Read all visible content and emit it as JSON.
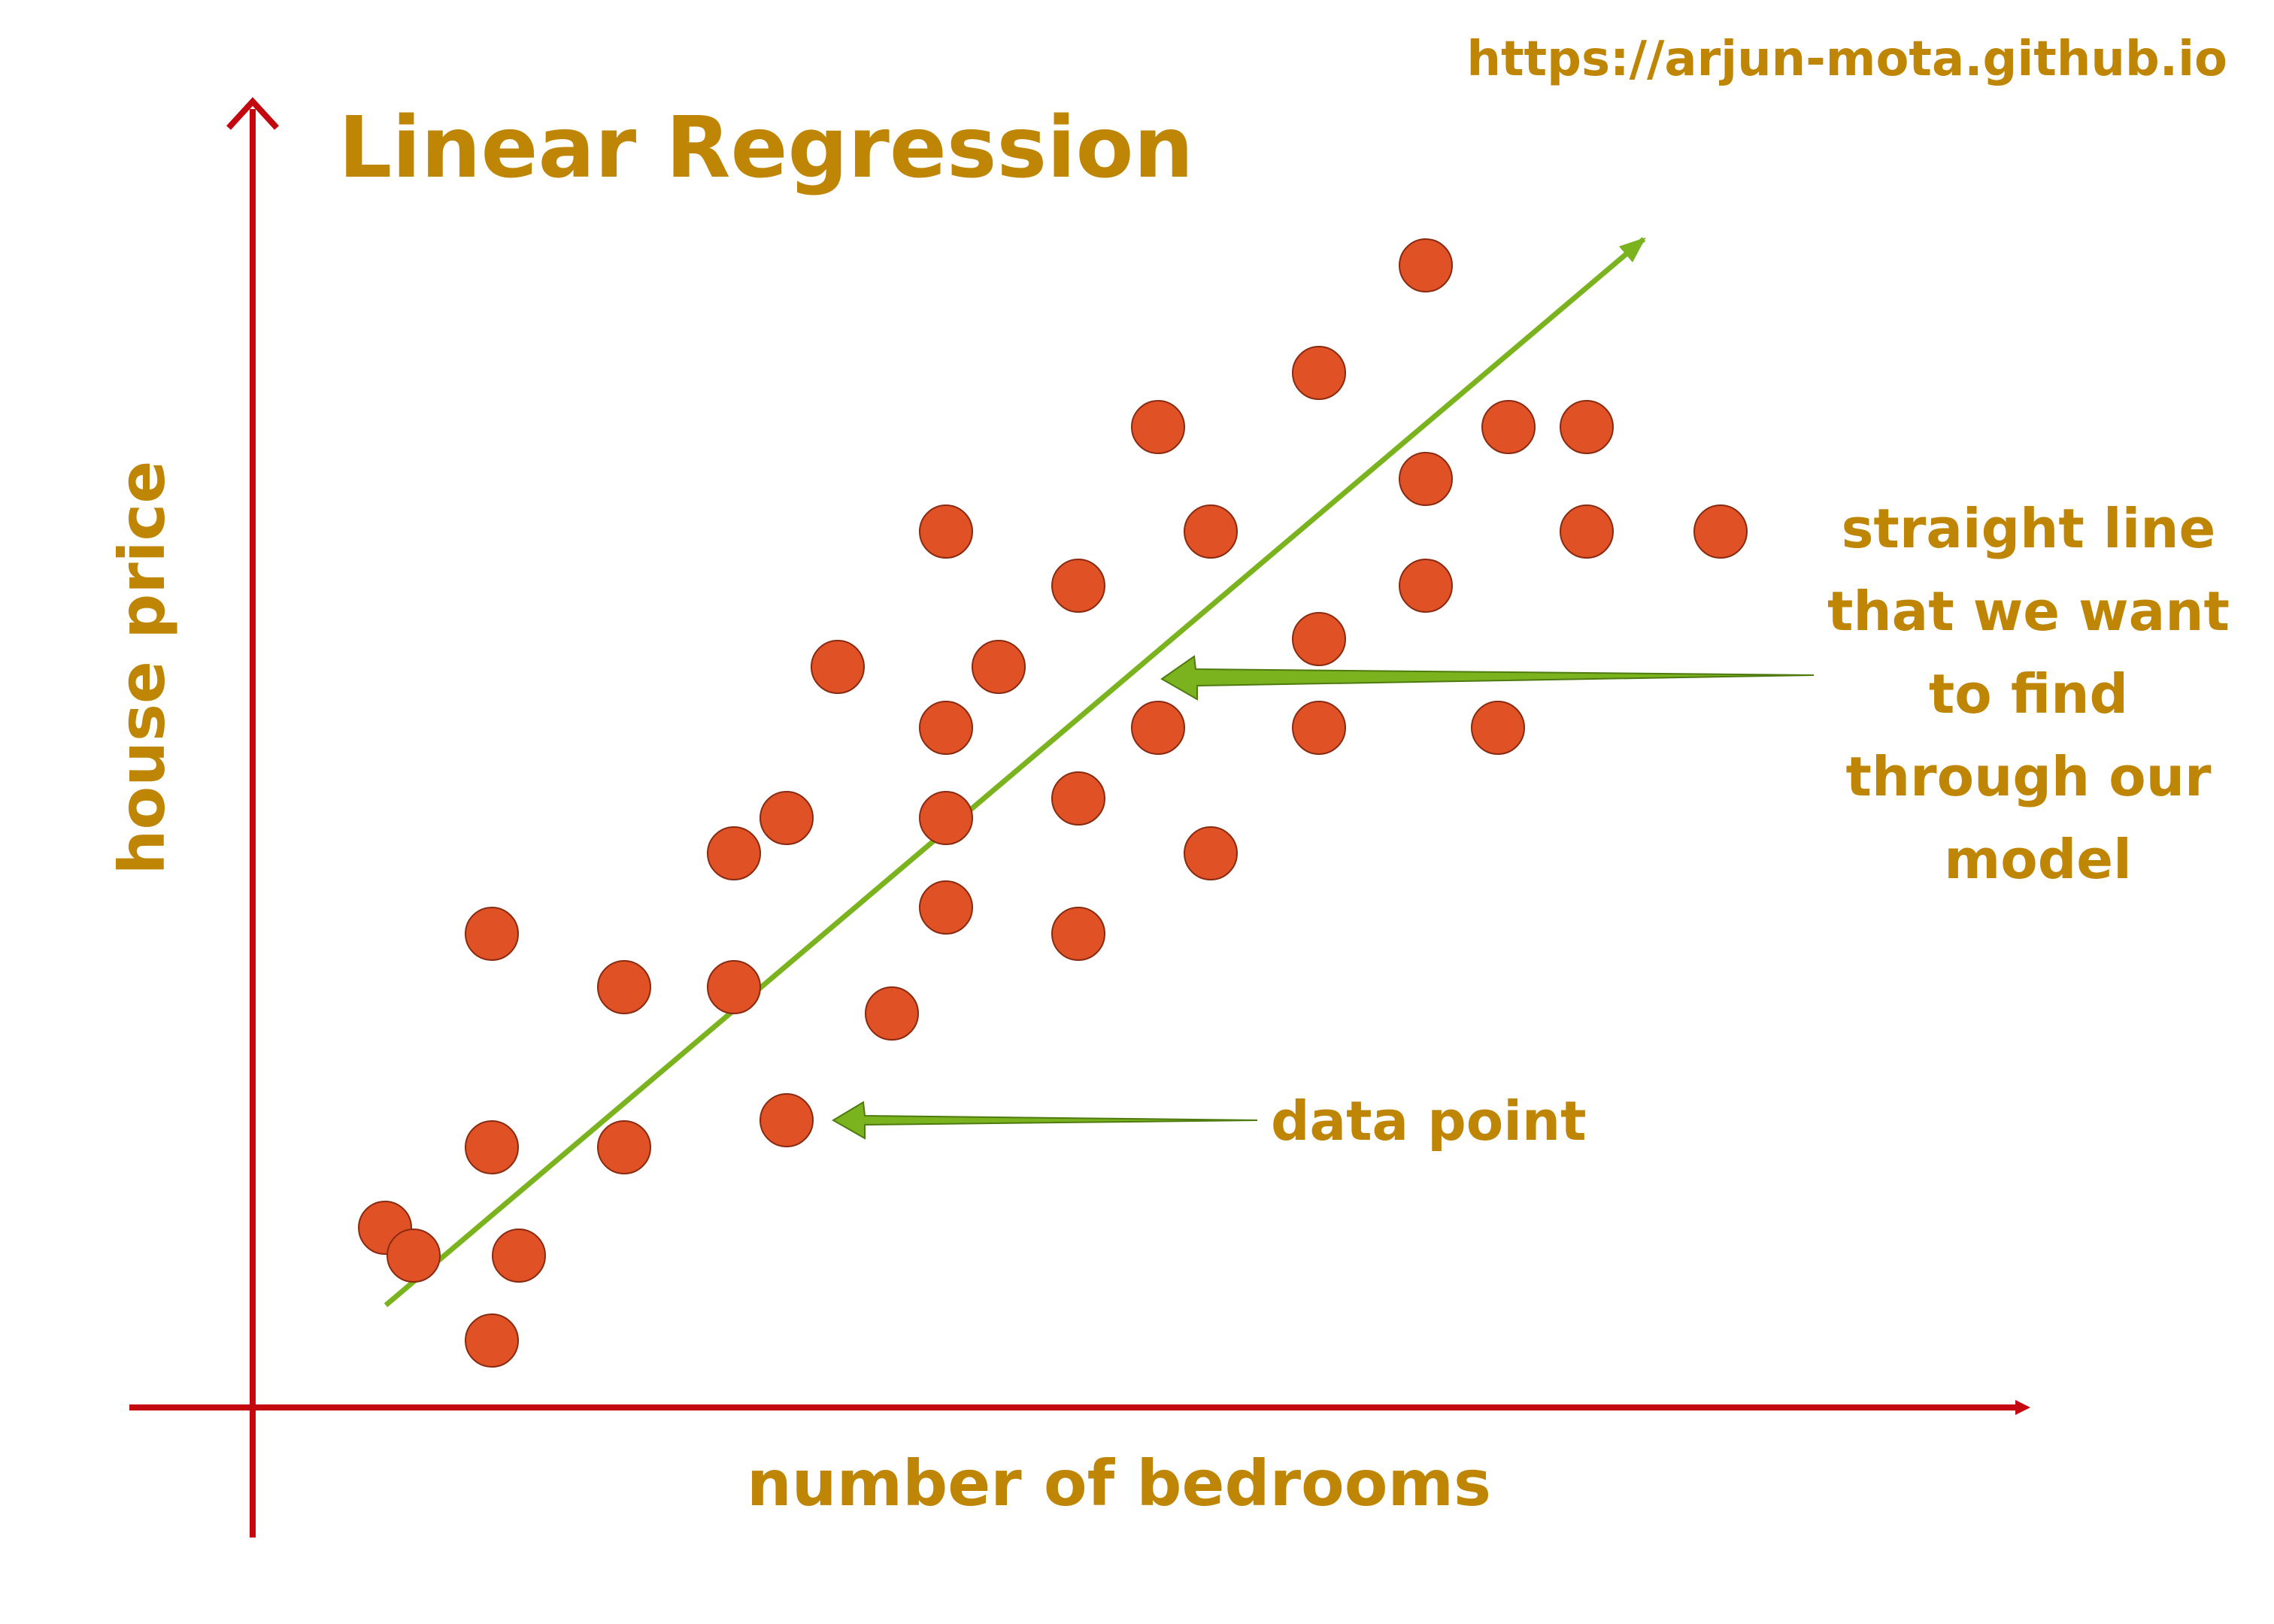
{
  "title": "Linear Regression",
  "url": "https://arjun-mota.github.io",
  "xlabel": "number of bedrooms",
  "ylabel": "house price",
  "annotations": {
    "line_label": [
      "straight line",
      "that we want",
      "to find",
      "through our",
      "model"
    ],
    "point_label": "data point"
  },
  "colors": {
    "text": "#bf8606",
    "axis": "#c4080f",
    "point_fill": "#e05226",
    "point_stroke": "#8a2a10",
    "line": "#7ab31e"
  }
}
